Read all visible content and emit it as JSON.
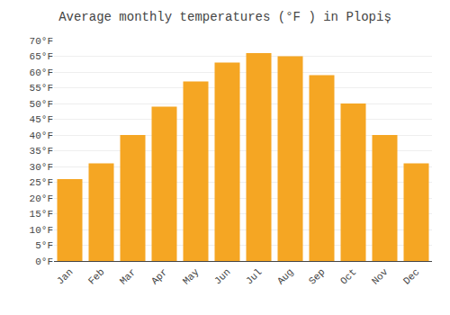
{
  "chart_data": {
    "type": "bar",
    "title": "Average monthly temperatures (°F ) in Plopiș",
    "categories": [
      "Jan",
      "Feb",
      "Mar",
      "Apr",
      "May",
      "Jun",
      "Jul",
      "Aug",
      "Sep",
      "Oct",
      "Nov",
      "Dec"
    ],
    "values": [
      26,
      31,
      40,
      49,
      57,
      63,
      66,
      65,
      59,
      50,
      40,
      31
    ],
    "color": "#F5A623",
    "ylim": [
      0,
      70
    ],
    "yticks": [
      {
        "value": 0,
        "label": "0°F"
      },
      {
        "value": 5,
        "label": "5°F"
      },
      {
        "value": 10,
        "label": "10°F"
      },
      {
        "value": 15,
        "label": "15°F"
      },
      {
        "value": 20,
        "label": "20°F"
      },
      {
        "value": 25,
        "label": "25°F"
      },
      {
        "value": 30,
        "label": "30°F"
      },
      {
        "value": 35,
        "label": "35°F"
      },
      {
        "value": 40,
        "label": "40°F"
      },
      {
        "value": 45,
        "label": "45°F"
      },
      {
        "value": 50,
        "label": "50°F"
      },
      {
        "value": 55,
        "label": "55°F"
      },
      {
        "value": 60,
        "label": "60°F"
      },
      {
        "value": 65,
        "label": "65°F"
      },
      {
        "value": 70,
        "label": "70°F"
      }
    ],
    "grid": true
  }
}
